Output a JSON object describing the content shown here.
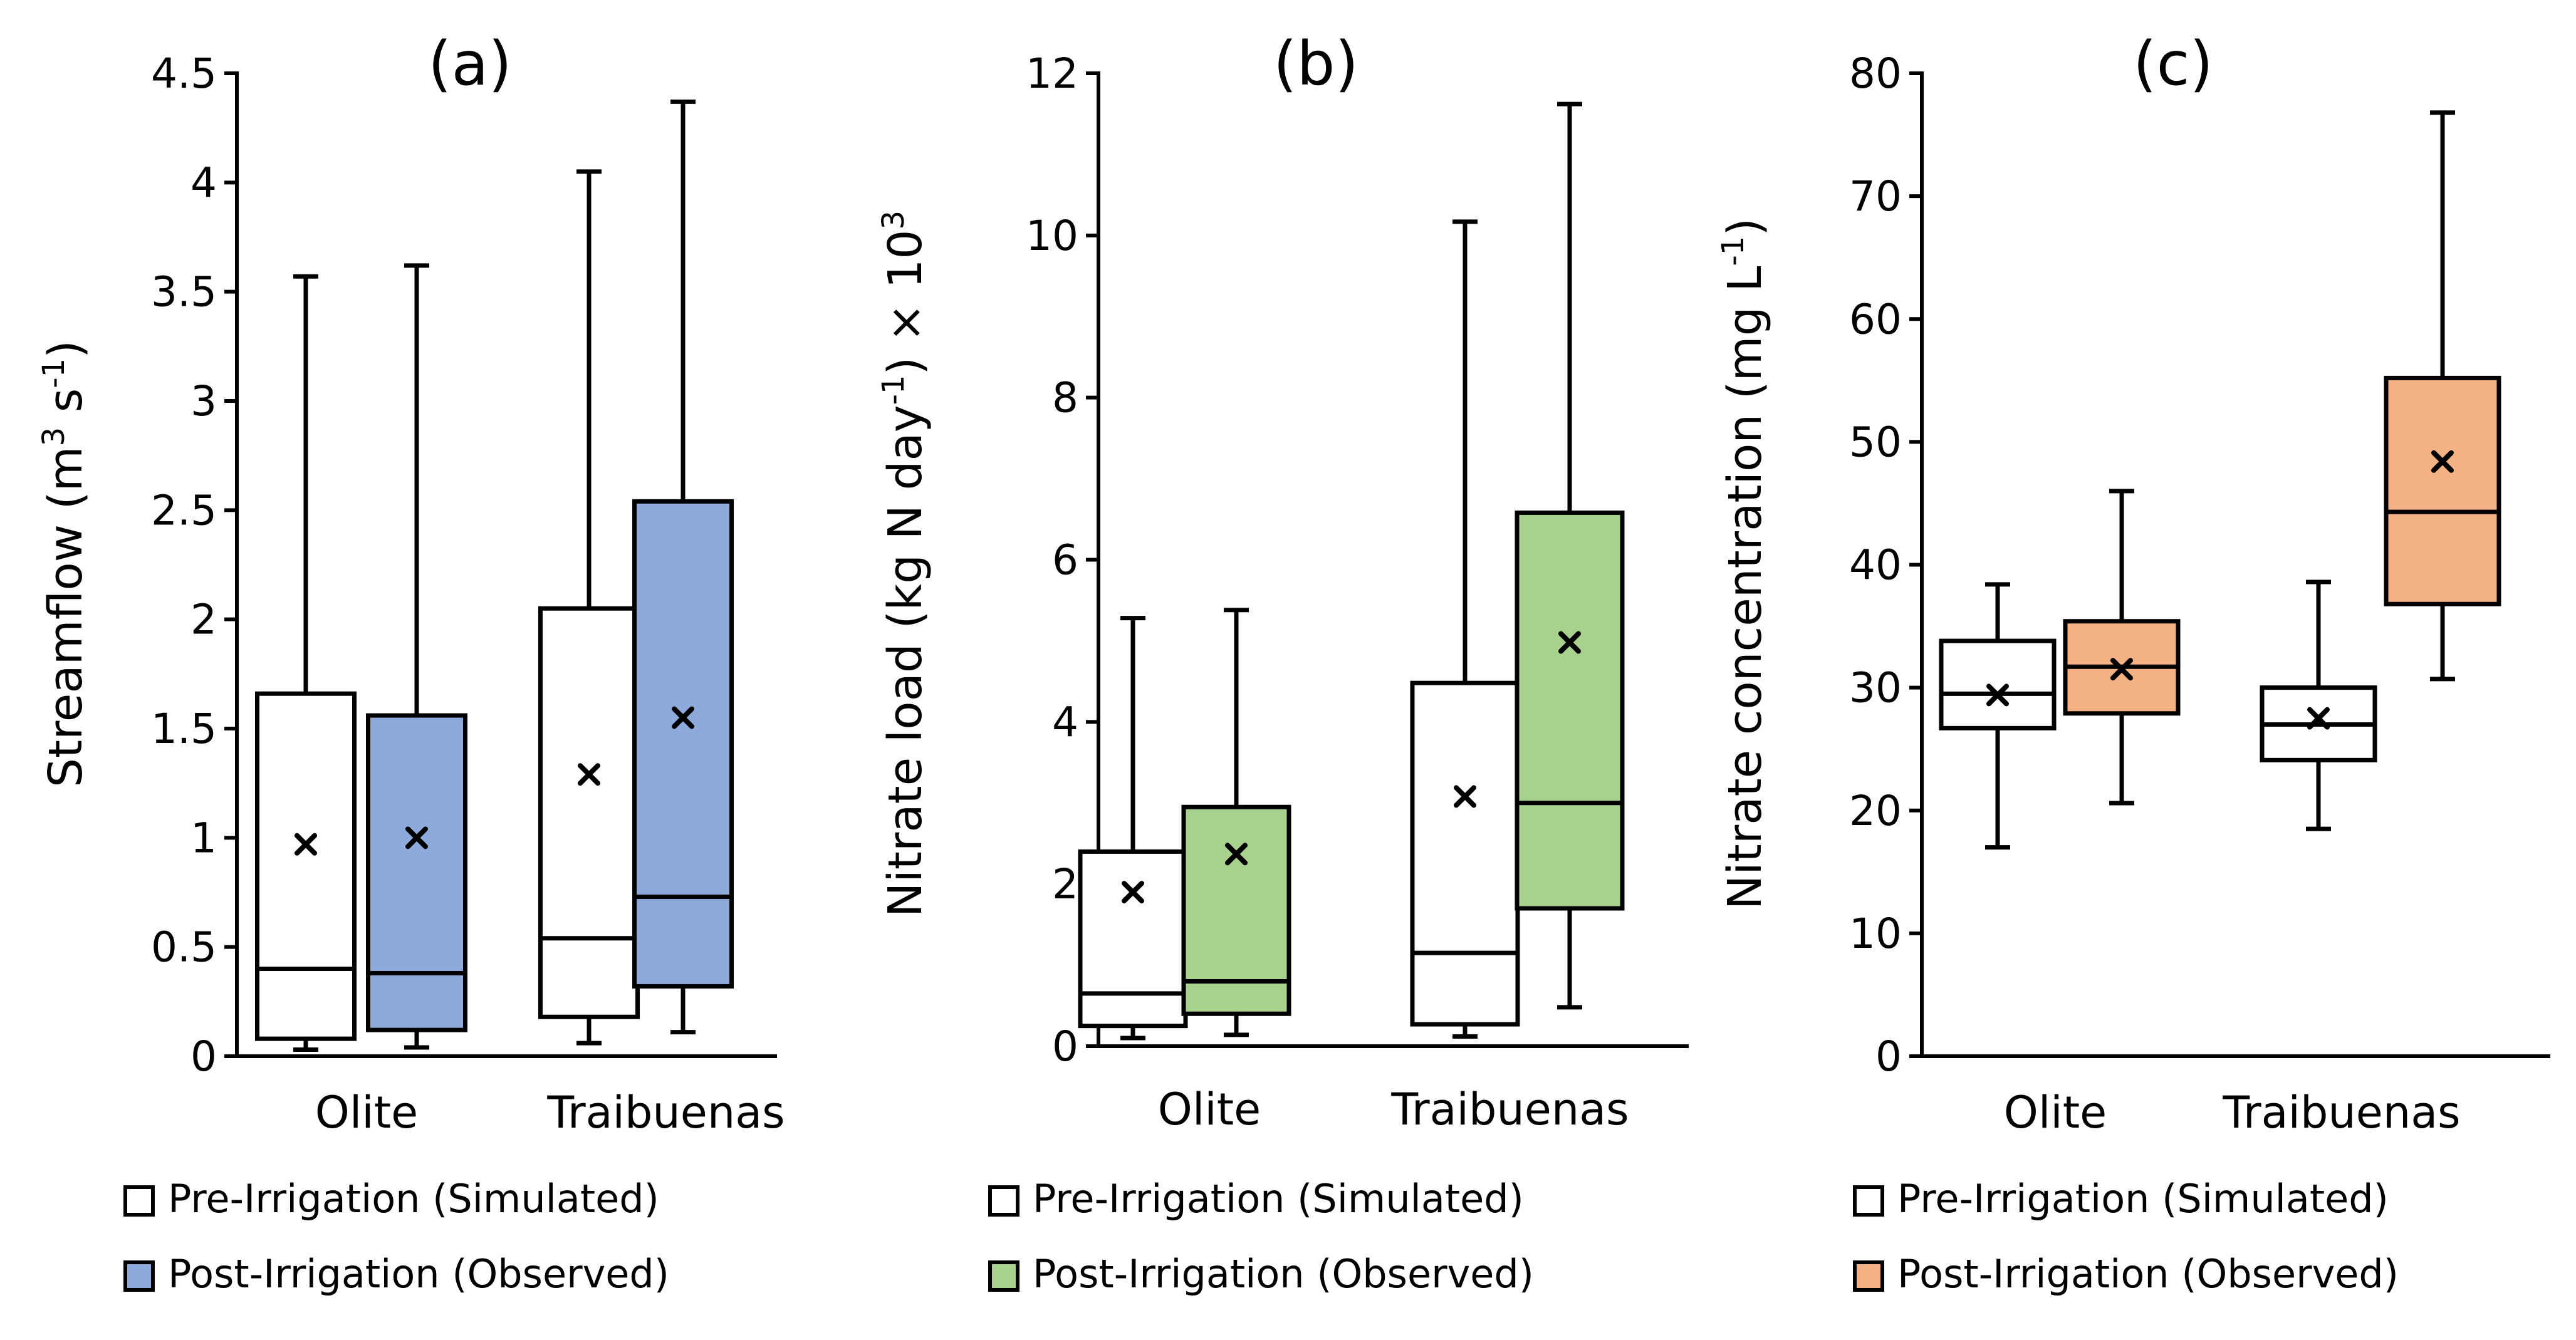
{
  "colors": {
    "pre": "#ffffff",
    "post_a": "#8eaadb",
    "post_b": "#a9d18e",
    "post_c": "#f4b183"
  },
  "chart_data": [
    {
      "type": "box",
      "title": "(a)",
      "ylabel": "Streamflow (m",
      "ylabel_sup1": "3",
      "ylabel_mid": " s",
      "ylabel_sup2": "-1",
      "ylabel_end": ")",
      "ylim": [
        0,
        4.5
      ],
      "yticks": [
        "0",
        "0.5",
        "1",
        "1.5",
        "2",
        "2.5",
        "3",
        "3.5",
        "4",
        "4.5"
      ],
      "categories": [
        "Olite",
        "Traibuenas"
      ],
      "series": [
        {
          "name": "Pre-Irrigation (Simulated)",
          "boxes": [
            {
              "whislo": 0.03,
              "q1": 0.08,
              "med": 0.4,
              "q3": 1.66,
              "whishi": 3.57,
              "mean": 0.97
            },
            {
              "whislo": 0.06,
              "q1": 0.18,
              "med": 0.54,
              "q3": 2.05,
              "whishi": 4.05,
              "mean": 1.29
            }
          ]
        },
        {
          "name": "Post-Irrigation (Observed)",
          "boxes": [
            {
              "whislo": 0.04,
              "q1": 0.12,
              "med": 0.38,
              "q3": 1.56,
              "whishi": 3.62,
              "mean": 1.0
            },
            {
              "whislo": 0.11,
              "q1": 0.32,
              "med": 0.73,
              "q3": 2.54,
              "whishi": 4.37,
              "mean": 1.55
            }
          ]
        }
      ],
      "legend": [
        "Pre-Irrigation (Simulated)",
        "Post-Irrigation (Observed)"
      ]
    },
    {
      "type": "box",
      "title": "(b)",
      "ylabel": "Nitrate load (kg N day",
      "ylabel_sup1": "-1",
      "ylabel_mid": ") × 10",
      "ylabel_sup2": "3",
      "ylabel_end": "",
      "ylim": [
        0,
        12
      ],
      "yticks": [
        "0",
        "2",
        "4",
        "6",
        "8",
        "10",
        "12"
      ],
      "categories": [
        "Olite",
        "Traibuenas"
      ],
      "series": [
        {
          "name": "Pre-Irrigation (Simulated)",
          "boxes": [
            {
              "whislo": 0.1,
              "q1": 0.25,
              "med": 0.65,
              "q3": 2.4,
              "whishi": 5.28,
              "mean": 1.9
            },
            {
              "whislo": 0.12,
              "q1": 0.27,
              "med": 1.15,
              "q3": 4.48,
              "whishi": 10.17,
              "mean": 3.08
            }
          ]
        },
        {
          "name": "Post-Irrigation (Observed)",
          "boxes": [
            {
              "whislo": 0.14,
              "q1": 0.4,
              "med": 0.8,
              "q3": 2.95,
              "whishi": 5.38,
              "mean": 2.37
            },
            {
              "whislo": 0.48,
              "q1": 1.7,
              "med": 3.0,
              "q3": 6.58,
              "whishi": 11.62,
              "mean": 4.98
            }
          ]
        }
      ],
      "legend": [
        "Pre-Irrigation (Simulated)",
        "Post-Irrigation (Observed)"
      ]
    },
    {
      "type": "box",
      "title": "(c)",
      "ylabel": "Nitrate concentration (mg L",
      "ylabel_sup1": "-1",
      "ylabel_mid": ")",
      "ylabel_sup2": "",
      "ylabel_end": "",
      "ylim": [
        0,
        80
      ],
      "yticks": [
        "0",
        "10",
        "20",
        "30",
        "40",
        "50",
        "60",
        "70",
        "80"
      ],
      "categories": [
        "Olite",
        "Traibuenas"
      ],
      "series": [
        {
          "name": "Pre-Irrigation (Simulated)",
          "boxes": [
            {
              "whislo": 17,
              "q1": 26.7,
              "med": 29.5,
              "q3": 33.8,
              "whishi": 38.4,
              "mean": 29.4
            },
            {
              "whislo": 18.5,
              "q1": 24.1,
              "med": 27.0,
              "q3": 30.0,
              "whishi": 38.6,
              "mean": 27.5
            }
          ]
        },
        {
          "name": "Post-Irrigation (Observed)",
          "boxes": [
            {
              "whislo": 20.6,
              "q1": 27.9,
              "med": 31.7,
              "q3": 35.4,
              "whishi": 46.0,
              "mean": 31.5
            },
            {
              "whislo": 30.7,
              "q1": 36.8,
              "med": 44.3,
              "q3": 55.2,
              "whishi": 76.8,
              "mean": 48.4
            }
          ]
        }
      ],
      "legend": [
        "Pre-Irrigation (Simulated)",
        "Post-Irrigation (Observed)"
      ]
    }
  ]
}
